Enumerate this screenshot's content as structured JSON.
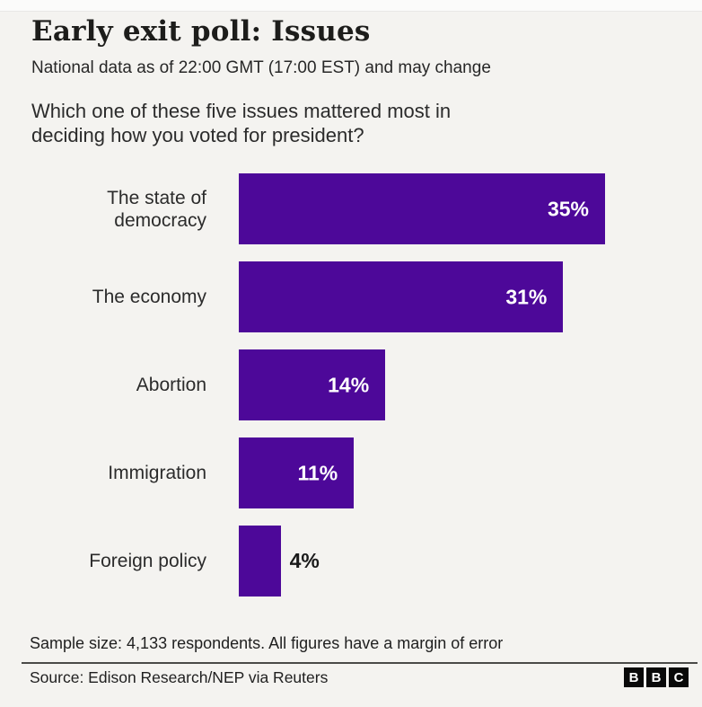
{
  "page": {
    "background": "#f4f3f0",
    "accent_color": "#4D0899"
  },
  "header": {
    "title": "Early exit poll: Issues",
    "subtitle": "National data as of 22:00 GMT (17:00 EST) and may change"
  },
  "question": "Which one of these five issues mattered most in\ndeciding how you voted for president?",
  "chart_data": {
    "type": "bar",
    "orientation": "horizontal",
    "title": "Early exit poll: Issues",
    "categories": [
      "The state of democracy",
      "The economy",
      "Abortion",
      "Immigration",
      "Foreign policy"
    ],
    "category_display": [
      "The state of\ndemocracy",
      "The economy",
      "Abortion",
      "Immigration",
      "Foreign policy"
    ],
    "values": [
      35,
      31,
      14,
      11,
      4
    ],
    "value_labels": [
      "35%",
      "31%",
      "14%",
      "11%",
      "4%"
    ],
    "value_suffix": "%",
    "xlim": [
      0,
      35
    ],
    "bar_color": "#4D0899",
    "value_label_inside_color": "#ffffff",
    "value_label_outside_color": "#1a1a1a",
    "inside_label_min_value": 8,
    "grid": false,
    "legend": false
  },
  "footer": {
    "note": "Sample size: 4,133 respondents. All figures have a margin of error",
    "source": "Source: Edison Research/NEP via Reuters",
    "logo_blocks": [
      "B",
      "B",
      "C"
    ]
  }
}
